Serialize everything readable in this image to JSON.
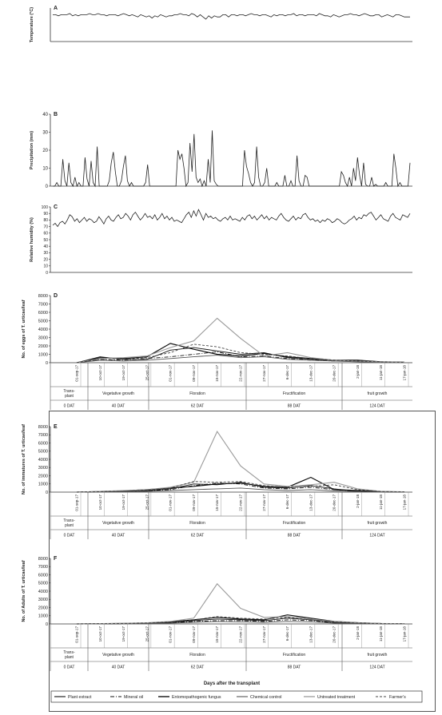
{
  "dates": [
    "01-sep-17",
    "10-oct-17",
    "19-oct-17",
    "25-oct-17",
    "01-nov-17",
    "09-nov-17",
    "15-nov-17",
    "22-nov-17",
    "27-nov-17",
    "6-dec-17",
    "13-dec-17",
    "20-dec-17",
    "2-jan-18",
    "11-jan-18",
    "17-jan-18"
  ],
  "stage_rows": {
    "stages": [
      "Trans-\nplant",
      "Vegetative growth",
      "Floration",
      "Fructification",
      "fruit growth"
    ],
    "dat": [
      "0 DAT",
      "40 DAT",
      "62 DAT",
      "88 DAT",
      "124 DAT"
    ]
  },
  "x_axis_title": "Days after the transplant",
  "legend": [
    "Plant extract",
    "Mineral oil",
    "Entomopathogenic fungus",
    "Chemical control",
    "Untreated treatment",
    "Farmer's"
  ],
  "chart_data": [
    {
      "id": "A",
      "type": "line",
      "panel_label": "A",
      "ylabel": "Temperature (°C)",
      "ylim": [
        0,
        30
      ],
      "ticks": [],
      "values": [
        24,
        24,
        23,
        24,
        24,
        24,
        25,
        23,
        24,
        23,
        24,
        24,
        24,
        25,
        24,
        24,
        25,
        24,
        24,
        23,
        24,
        24,
        24,
        23,
        24,
        25,
        24,
        23,
        24,
        23,
        22,
        24,
        23,
        22,
        23,
        21,
        23,
        22,
        24,
        23,
        22,
        23,
        23,
        24,
        24,
        25,
        24,
        24,
        23,
        25,
        24,
        22,
        24,
        22,
        20,
        23,
        21,
        23,
        22,
        22,
        24,
        24,
        22,
        24,
        24,
        23,
        24,
        24,
        23,
        24,
        25,
        24,
        24,
        23,
        24,
        24,
        23,
        22,
        24,
        23,
        24,
        24,
        23,
        24,
        24,
        25,
        23,
        24,
        24,
        23,
        24,
        24,
        24,
        23,
        25,
        24,
        23,
        23,
        22,
        24,
        23,
        22,
        23,
        24,
        24,
        25,
        24,
        24,
        23,
        24,
        25,
        24,
        23,
        23,
        24,
        24,
        22,
        23,
        24,
        23,
        22,
        24,
        24,
        23,
        22,
        22,
        22
      ]
    },
    {
      "id": "B",
      "type": "line",
      "panel_label": "B",
      "ylabel": "Precipitation (mm)",
      "ylim": [
        0,
        40
      ],
      "ticks": [
        0,
        10,
        20,
        30,
        40
      ],
      "values": [
        0,
        0,
        2,
        0,
        0,
        15,
        3,
        0,
        13,
        2,
        0,
        5,
        0,
        2,
        0,
        0,
        16,
        4,
        0,
        14,
        2,
        0,
        22,
        0,
        0,
        0,
        0,
        0,
        3,
        13,
        19,
        8,
        0,
        0,
        3,
        11,
        17,
        3,
        0,
        2,
        0,
        0,
        0,
        0,
        0,
        0,
        2,
        12,
        0,
        0,
        0,
        0,
        0,
        0,
        0,
        0,
        0,
        0,
        0,
        0,
        0,
        0,
        20,
        15,
        18,
        10,
        0,
        2,
        24,
        8,
        29,
        5,
        2,
        4,
        0,
        3,
        0,
        15,
        2,
        31,
        3,
        1,
        0,
        0,
        0,
        0,
        0,
        0,
        0,
        0,
        0,
        0,
        0,
        0,
        0,
        20,
        11,
        7,
        2,
        0,
        2,
        22,
        5,
        0,
        0,
        2,
        10,
        0,
        0,
        0,
        0,
        2,
        0,
        0,
        0,
        6,
        0,
        0,
        3,
        0,
        0,
        17,
        3,
        0,
        0,
        6,
        5,
        0,
        0,
        0,
        0,
        0,
        0,
        0,
        0,
        0,
        0,
        0,
        0,
        0,
        0,
        0,
        0,
        8,
        6,
        2,
        0,
        5,
        0,
        10,
        3,
        16,
        6,
        0,
        13,
        1,
        0,
        0,
        5,
        0,
        1,
        0,
        0,
        0,
        0,
        2,
        0,
        0,
        0,
        18,
        10,
        0,
        2,
        0,
        0,
        0,
        0,
        13
      ]
    },
    {
      "id": "C",
      "type": "line",
      "panel_label": "C",
      "ylabel": "Relative humidity (%)",
      "ylim": [
        0,
        100
      ],
      "ticks": [
        0,
        10,
        20,
        30,
        40,
        50,
        60,
        70,
        80,
        90,
        100
      ],
      "values": [
        72,
        75,
        70,
        76,
        78,
        74,
        80,
        88,
        85,
        78,
        82,
        76,
        80,
        84,
        78,
        82,
        80,
        76,
        78,
        85,
        80,
        74,
        82,
        86,
        80,
        78,
        84,
        88,
        82,
        84,
        90,
        86,
        80,
        88,
        92,
        86,
        80,
        84,
        90,
        84,
        86,
        82,
        88,
        80,
        84,
        90,
        82,
        86,
        80,
        84,
        78,
        80,
        78,
        76,
        82,
        88,
        92,
        84,
        94,
        86,
        96,
        88,
        80,
        90,
        84,
        86,
        82,
        84,
        80,
        78,
        82,
        84,
        80,
        86,
        80,
        82,
        80,
        78,
        84,
        80,
        86,
        88,
        82,
        86,
        80,
        84,
        88,
        82,
        86,
        80,
        84,
        82,
        80,
        86,
        90,
        84,
        80,
        78,
        82,
        86,
        80,
        84,
        82,
        88,
        90,
        84,
        80,
        82,
        78,
        80,
        76,
        80,
        78,
        82,
        80,
        76,
        78,
        82,
        80,
        76,
        74,
        76,
        80,
        82,
        86,
        80,
        84,
        82,
        88,
        86,
        90,
        92,
        86,
        80,
        84,
        88,
        82,
        80,
        78,
        86,
        90,
        84,
        82,
        80,
        88,
        86,
        84,
        90
      ]
    },
    {
      "id": "D",
      "type": "line",
      "panel_label": "D",
      "ylabel": "No. of eggs of T. urticae/leaf",
      "ylim": [
        0,
        8000
      ],
      "ticks": [
        0,
        1000,
        2000,
        3000,
        4000,
        5000,
        6000,
        7000,
        8000
      ],
      "series": [
        {
          "name": "Plant extract",
          "values": [
            0,
            700,
            400,
            400,
            1500,
            1800,
            1400,
            1000,
            1200,
            600,
            400,
            300,
            300,
            100,
            50
          ]
        },
        {
          "name": "Mineral oil",
          "values": [
            0,
            400,
            300,
            500,
            700,
            1000,
            1300,
            700,
            800,
            500,
            300,
            200,
            200,
            80,
            40
          ]
        },
        {
          "name": "Entomopathogenic fungus",
          "values": [
            0,
            600,
            500,
            700,
            2300,
            1600,
            1000,
            800,
            1100,
            700,
            500,
            300,
            300,
            100,
            60
          ]
        },
        {
          "name": "Chemical control",
          "values": [
            0,
            300,
            200,
            300,
            500,
            700,
            900,
            600,
            700,
            400,
            300,
            200,
            100,
            50,
            30
          ]
        },
        {
          "name": "Untreated treatment",
          "values": [
            0,
            500,
            600,
            800,
            1800,
            2600,
            5300,
            2900,
            800,
            1200,
            600,
            300,
            200,
            100,
            60
          ]
        },
        {
          "name": "Farmer's",
          "values": [
            0,
            400,
            400,
            600,
            1200,
            2200,
            1900,
            1200,
            1000,
            800,
            500,
            300,
            200,
            100,
            50
          ]
        }
      ]
    },
    {
      "id": "E",
      "type": "line",
      "panel_label": "E",
      "ylabel": "No. of immatures of T. urticae/leaf",
      "ylim": [
        0,
        8000
      ],
      "ticks": [
        0,
        1000,
        2000,
        3000,
        4000,
        5000,
        6000,
        7000,
        8000
      ],
      "series": [
        {
          "name": "Plant extract",
          "values": [
            0,
            50,
            100,
            200,
            400,
            1000,
            900,
            1200,
            600,
            500,
            800,
            400,
            100,
            50,
            20
          ]
        },
        {
          "name": "Mineral oil",
          "values": [
            0,
            50,
            80,
            150,
            300,
            800,
            1100,
            1000,
            500,
            400,
            600,
            300,
            100,
            40,
            20
          ]
        },
        {
          "name": "Entomopathogenic fungus",
          "values": [
            0,
            80,
            150,
            300,
            500,
            700,
            1000,
            1100,
            700,
            600,
            1800,
            300,
            200,
            60,
            30
          ]
        },
        {
          "name": "Chemical control",
          "values": [
            0,
            30,
            60,
            100,
            200,
            300,
            400,
            500,
            300,
            200,
            300,
            150,
            80,
            30,
            10
          ]
        },
        {
          "name": "Untreated treatment",
          "values": [
            0,
            100,
            200,
            300,
            600,
            1200,
            7400,
            3200,
            1000,
            700,
            900,
            1200,
            400,
            100,
            50
          ]
        },
        {
          "name": "Farmer's",
          "values": [
            0,
            60,
            120,
            250,
            500,
            1300,
            1200,
            1300,
            800,
            600,
            700,
            900,
            300,
            80,
            30
          ]
        }
      ]
    },
    {
      "id": "F",
      "type": "line",
      "panel_label": "F",
      "ylabel": "No. of Adults of T. urticae/leaf",
      "ylim": [
        0,
        8000
      ],
      "ticks": [
        0,
        1000,
        2000,
        3000,
        4000,
        5000,
        6000,
        7000,
        8000
      ],
      "series": [
        {
          "name": "Plant extract",
          "values": [
            0,
            20,
            50,
            100,
            200,
            400,
            600,
            500,
            400,
            700,
            500,
            200,
            100,
            40,
            20
          ]
        },
        {
          "name": "Mineral oil",
          "values": [
            0,
            20,
            40,
            80,
            150,
            300,
            400,
            400,
            300,
            500,
            400,
            150,
            80,
            30,
            10
          ]
        },
        {
          "name": "Entomopathogenic fungus",
          "values": [
            0,
            30,
            60,
            120,
            250,
            500,
            800,
            600,
            500,
            1100,
            700,
            300,
            150,
            50,
            20
          ]
        },
        {
          "name": "Chemical control",
          "values": [
            0,
            10,
            30,
            60,
            100,
            200,
            300,
            250,
            200,
            300,
            250,
            100,
            50,
            20,
            10
          ]
        },
        {
          "name": "Untreated treatment",
          "values": [
            0,
            40,
            80,
            150,
            300,
            700,
            4900,
            1900,
            800,
            900,
            600,
            300,
            150,
            60,
            30
          ]
        },
        {
          "name": "Farmer's",
          "values": [
            0,
            30,
            60,
            120,
            250,
            500,
            900,
            700,
            600,
            800,
            500,
            250,
            120,
            40,
            20
          ]
        }
      ]
    }
  ]
}
